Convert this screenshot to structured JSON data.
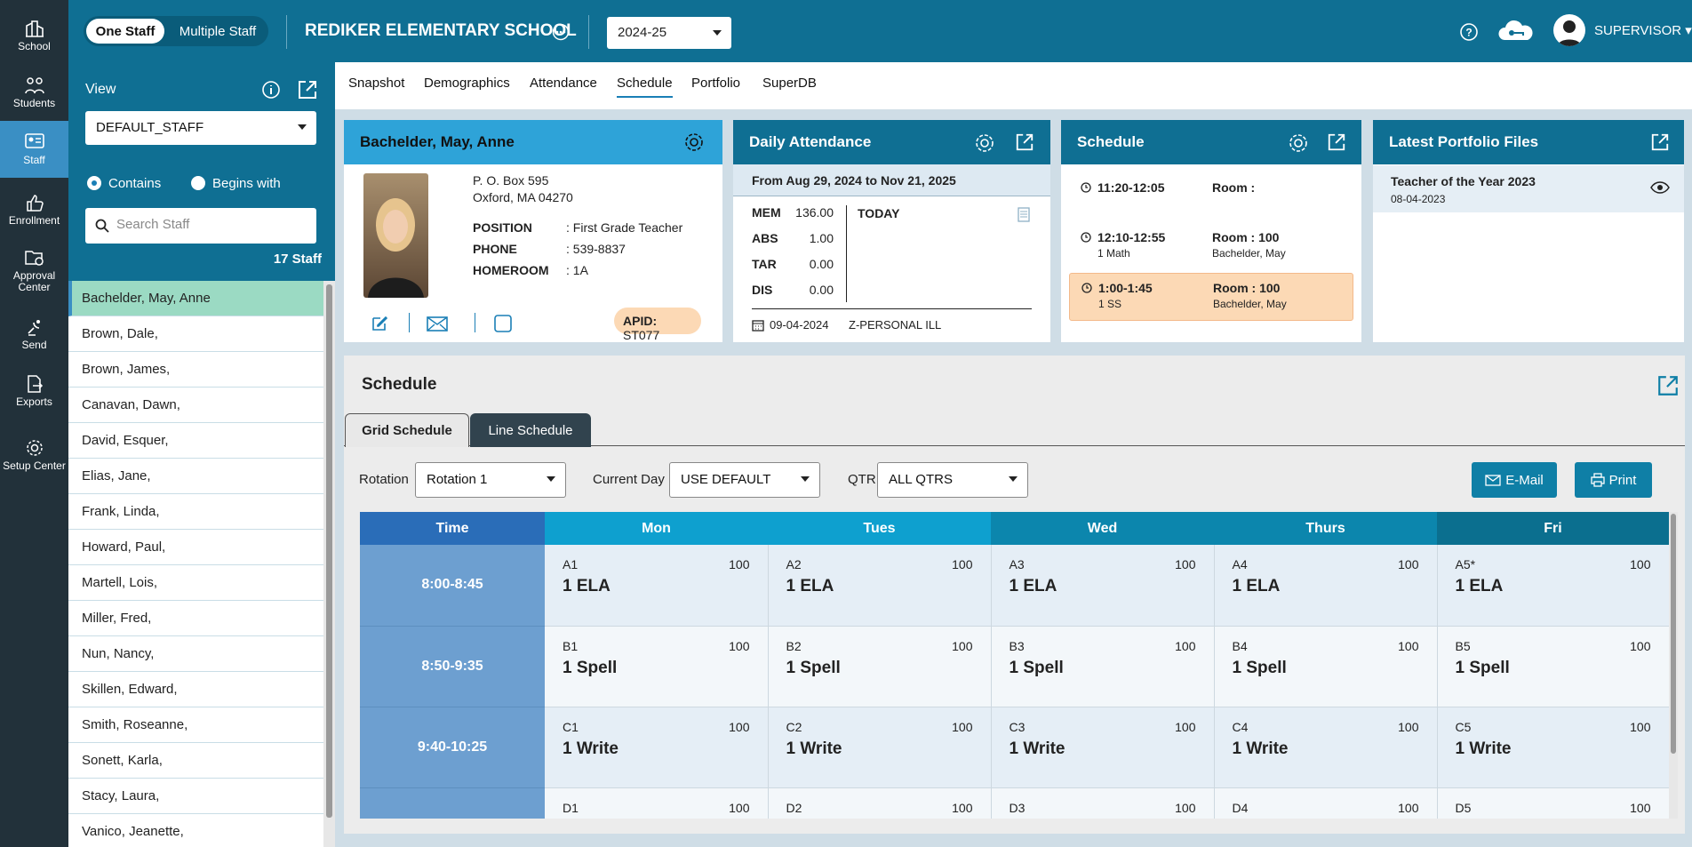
{
  "rail": [
    {
      "label": "School",
      "icon": "school-icon"
    },
    {
      "label": "Students",
      "icon": "students-icon"
    },
    {
      "label": "Staff",
      "icon": "staff-icon",
      "active": true
    },
    {
      "label": "Enrollment",
      "icon": "thumbs-up-icon"
    },
    {
      "label": "Approval Center",
      "icon": "folder-clock-icon"
    },
    {
      "label": "Send",
      "icon": "satellite-icon"
    },
    {
      "label": "Exports",
      "icon": "file-export-icon"
    },
    {
      "label": "Setup Center",
      "icon": "gear-icon"
    }
  ],
  "topbar": {
    "one_staff": "One Staff",
    "multiple_staff": "Multiple Staff",
    "school_name": "REDIKER ELEMENTARY SCHOOL",
    "year": "2024-25",
    "user": "SUPERVISOR"
  },
  "leftpanel": {
    "view_label": "View",
    "view_value": "DEFAULT_STAFF",
    "contains": "Contains",
    "begins_with": "Begins with",
    "search_placeholder": "Search Staff",
    "count": "17 Staff",
    "staff": [
      "Bachelder, May, Anne",
      "Brown, Dale,",
      "Brown, James,",
      "Canavan, Dawn,",
      "David, Esquer,",
      "Elias, Jane,",
      "Frank, Linda,",
      "Howard, Paul,",
      "Martell, Lois,",
      "Miller, Fred,",
      "Nun, Nancy,",
      "Skillen, Edward,",
      "Smith, Roseanne,",
      "Sonett, Karla,",
      "Stacy, Laura,",
      "Vanico, Jeanette,"
    ]
  },
  "tabs": [
    "Snapshot",
    "Demographics",
    "Attendance",
    "Schedule",
    "Portfolio",
    "SuperDB"
  ],
  "active_tab": "Schedule",
  "profile": {
    "name": "Bachelder, May, Anne",
    "address1": "P. O. Box 595",
    "address2": "Oxford, MA 04270",
    "position_label": "POSITION",
    "position": ": First Grade Teacher",
    "phone_label": "PHONE",
    "phone": ": 539-8837",
    "homeroom_label": "HOMEROOM",
    "homeroom": ": 1A",
    "apid_label": "APID:",
    "apid": "ST077"
  },
  "attendance": {
    "title": "Daily Attendance",
    "range": "From Aug 29, 2024 to Nov 21, 2025",
    "rows": [
      {
        "label": "MEM",
        "value": "136.00"
      },
      {
        "label": "ABS",
        "value": "1.00"
      },
      {
        "label": "TAR",
        "value": "0.00"
      },
      {
        "label": "DIS",
        "value": "0.00"
      }
    ],
    "today": "TODAY",
    "date": "09-04-2024",
    "reason": "Z-PERSONAL ILL"
  },
  "schedule_card": {
    "title": "Schedule",
    "items": [
      {
        "time": "11:20-12:05",
        "course": "",
        "room": "Room :",
        "teacher": ""
      },
      {
        "time": "12:10-12:55",
        "course": "1 Math",
        "room": "Room : 100",
        "teacher": "Bachelder, May"
      },
      {
        "time": "1:00-1:45",
        "course": "1 SS",
        "room": "Room : 100",
        "teacher": "Bachelder, May"
      }
    ]
  },
  "portfolio": {
    "title": "Latest Portfolio Files",
    "file": "Teacher of the Year 2023",
    "date": "08-04-2023"
  },
  "schedule": {
    "title": "Schedule",
    "grid_tab": "Grid Schedule",
    "line_tab": "Line Schedule",
    "rotation_label": "Rotation",
    "rotation": "Rotation 1",
    "day_label": "Current Day",
    "day": "USE DEFAULT",
    "qtr_label": "QTR",
    "qtr": "ALL QTRS",
    "email": "E-Mail",
    "print": "Print",
    "headers": [
      "Time",
      "Mon",
      "Tues",
      "Wed",
      "Thurs",
      "Fri"
    ],
    "header_colors": [
      "#2a6db8",
      "#0ea0cf",
      "#0ea0cf",
      "#0c86ad",
      "#0c86ad",
      "#0b6f8f"
    ],
    "rows": [
      {
        "time": "8:00-8:45",
        "cells": [
          {
            "code": "A1",
            "room": "100",
            "course": "1 ELA"
          },
          {
            "code": "A2",
            "room": "100",
            "course": "1 ELA"
          },
          {
            "code": "A3",
            "room": "100",
            "course": "1 ELA"
          },
          {
            "code": "A4",
            "room": "100",
            "course": "1 ELA"
          },
          {
            "code": "A5*",
            "room": "100",
            "course": "1 ELA"
          }
        ]
      },
      {
        "time": "8:50-9:35",
        "cells": [
          {
            "code": "B1",
            "room": "100",
            "course": "1 Spell"
          },
          {
            "code": "B2",
            "room": "100",
            "course": "1 Spell"
          },
          {
            "code": "B3",
            "room": "100",
            "course": "1 Spell"
          },
          {
            "code": "B4",
            "room": "100",
            "course": "1 Spell"
          },
          {
            "code": "B5",
            "room": "100",
            "course": "1 Spell"
          }
        ]
      },
      {
        "time": "9:40-10:25",
        "cells": [
          {
            "code": "C1",
            "room": "100",
            "course": "1 Write"
          },
          {
            "code": "C2",
            "room": "100",
            "course": "1 Write"
          },
          {
            "code": "C3",
            "room": "100",
            "course": "1 Write"
          },
          {
            "code": "C4",
            "room": "100",
            "course": "1 Write"
          },
          {
            "code": "C5",
            "room": "100",
            "course": "1 Write"
          }
        ]
      },
      {
        "time": "",
        "cells": [
          {
            "code": "D1",
            "room": "100",
            "course": ""
          },
          {
            "code": "D2",
            "room": "100",
            "course": ""
          },
          {
            "code": "D3",
            "room": "100",
            "course": ""
          },
          {
            "code": "D4",
            "room": "100",
            "course": ""
          },
          {
            "code": "D5",
            "room": "100",
            "course": ""
          }
        ]
      }
    ]
  }
}
